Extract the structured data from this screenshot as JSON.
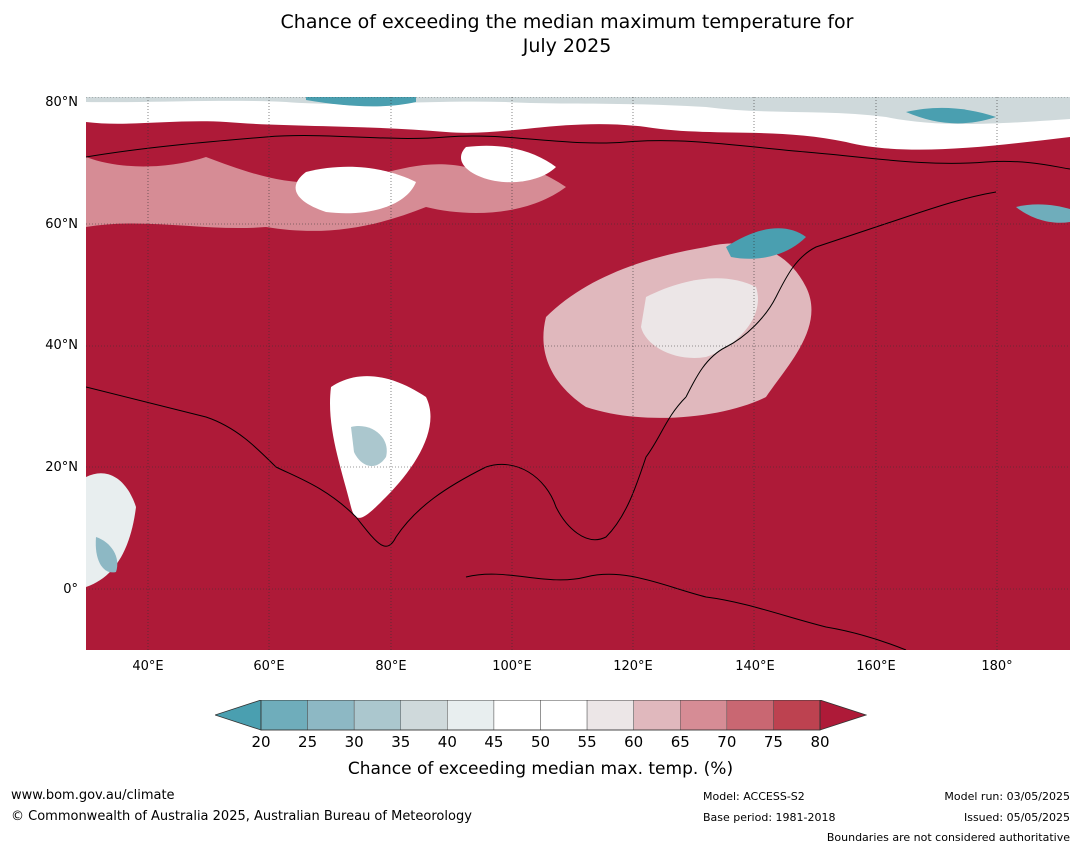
{
  "title_line1": "Chance of exceeding the median maximum temperature for",
  "title_line2": "July 2025",
  "lat_labels": [
    "80°N",
    "60°N",
    "40°N",
    "20°N",
    "0°"
  ],
  "lon_labels": [
    "40°E",
    "60°E",
    "80°E",
    "100°E",
    "120°E",
    "140°E",
    "160°E",
    "180°"
  ],
  "colorbar": {
    "ticks": [
      "20",
      "25",
      "30",
      "35",
      "40",
      "45",
      "50",
      "55",
      "60",
      "65",
      "70",
      "75",
      "80"
    ],
    "colors": [
      "#4a9fb0",
      "#6fadbb",
      "#8db8c4",
      "#abc7ce",
      "#cfd9db",
      "#e8eeef",
      "#ffffff",
      "#ffffff",
      "#ece6e7",
      "#e0b8bd",
      "#d68c95",
      "#c96772",
      "#bd4250",
      "#ae1a38"
    ],
    "label": "Chance of exceeding median max. temp. (%)"
  },
  "footer": {
    "url": "www.bom.gov.au/climate",
    "copyright": "© Commonwealth of Australia 2025, Australian Bureau of Meteorology",
    "model": "Model: ACCESS-S2",
    "base_period": "Base period: 1981-2018",
    "model_run": "Model run: 03/05/2025",
    "issued": "Issued: 05/05/2025",
    "boundaries": "Boundaries are not considered authoritative"
  }
}
